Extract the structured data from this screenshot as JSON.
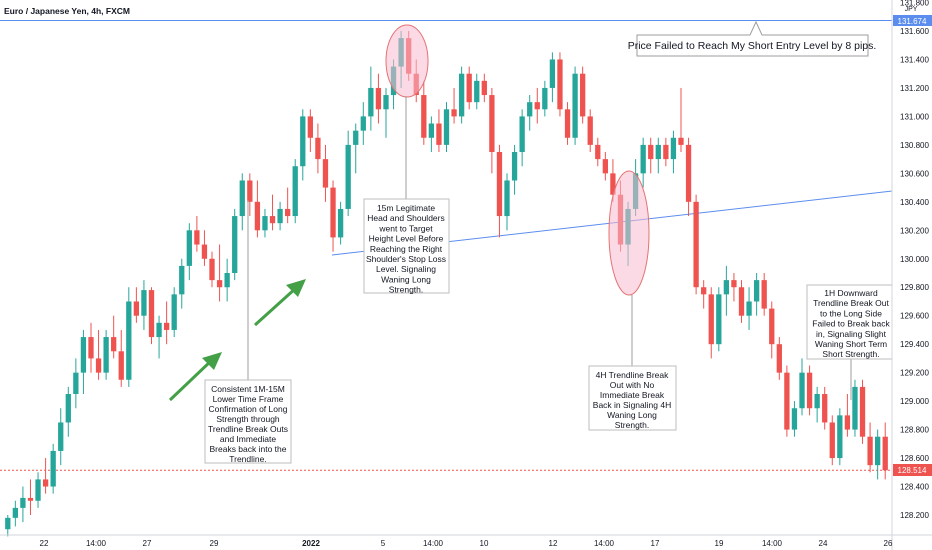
{
  "window": {
    "title": "Euro / Japanese Yen, 4h, FXCM"
  },
  "colors": {
    "up": "#26a69a",
    "down": "#ef5350",
    "hline": "#5b8def",
    "trendline": "#5b8def",
    "lastPrice": "#ef5350",
    "arrow": "#43a047",
    "ellipseFill": "#f8bbd0",
    "ellipseStroke": "#e57373"
  },
  "axis": {
    "currency": "JPY",
    "priceLabels": [
      "131.800",
      "131.600",
      "131.400",
      "131.200",
      "131.000",
      "130.800",
      "130.600",
      "130.400",
      "130.200",
      "130.000",
      "129.800",
      "129.600",
      "129.400",
      "129.200",
      "129.000",
      "128.800",
      "128.600",
      "128.400",
      "128.200"
    ],
    "dateLabels": [
      "22",
      "14:00",
      "27",
      "29",
      "2022",
      "5",
      "14:00",
      "10",
      "12",
      "14:00",
      "17",
      "19",
      "14:00",
      "24",
      "26"
    ],
    "hlinePrice": "131.674",
    "lastPrice": "128.514"
  },
  "annotations": {
    "shortEntry": "Price Failed to Reach My Short Entry Level by 8 pips.",
    "headShoulders": [
      "15m Legitimate",
      "Head and Shoulders",
      "went to Target",
      "Height Level Before",
      "Reaching the Right",
      "Shoulder's Stop Loss",
      "Level. Signaling",
      "Waning Long",
      "Strength."
    ],
    "consistent": [
      "Consistent 1M-15M",
      "Lower Time Frame",
      "Confirmation of Long",
      "Strength through",
      "Trendline Break Outs",
      "and Immediate",
      "Breaks back into the",
      "Trendline."
    ],
    "trendline4h": [
      "4H Trendline Break",
      "Out with No",
      "Immediate Break",
      "Back in Signaling 4H",
      "Waning Long",
      "Strength."
    ],
    "downward1h": [
      "1H Downward",
      "Trendline Break Out",
      "to the Long Side",
      "Failed to Break back",
      "in, Signaling Slight",
      "Waning Short Term",
      "Short Strength."
    ]
  },
  "candles": [
    [
      128.1,
      128.2,
      128.05,
      128.18
    ],
    [
      128.18,
      128.3,
      128.12,
      128.25
    ],
    [
      128.25,
      128.4,
      128.15,
      128.32
    ],
    [
      128.32,
      128.45,
      128.2,
      128.3
    ],
    [
      128.3,
      128.5,
      128.25,
      128.45
    ],
    [
      128.45,
      128.6,
      128.35,
      128.4
    ],
    [
      128.4,
      128.7,
      128.35,
      128.65
    ],
    [
      128.65,
      128.95,
      128.55,
      128.85
    ],
    [
      128.85,
      129.1,
      128.75,
      129.05
    ],
    [
      129.05,
      129.3,
      128.95,
      129.2
    ],
    [
      129.2,
      129.5,
      129.05,
      129.45
    ],
    [
      129.45,
      129.55,
      129.2,
      129.3
    ],
    [
      129.3,
      129.5,
      129.15,
      129.2
    ],
    [
      129.2,
      129.5,
      129.15,
      129.45
    ],
    [
      129.45,
      129.6,
      129.3,
      129.35
    ],
    [
      129.35,
      129.5,
      129.1,
      129.15
    ],
    [
      129.15,
      129.8,
      129.1,
      129.7
    ],
    [
      129.7,
      129.8,
      129.55,
      129.6
    ],
    [
      129.6,
      129.85,
      129.5,
      129.78
    ],
    [
      129.78,
      129.8,
      129.4,
      129.45
    ],
    [
      129.45,
      129.6,
      129.3,
      129.55
    ],
    [
      129.55,
      129.7,
      129.4,
      129.5
    ],
    [
      129.5,
      129.8,
      129.45,
      129.75
    ],
    [
      129.75,
      130.0,
      129.65,
      129.95
    ],
    [
      129.95,
      130.25,
      129.85,
      130.2
    ],
    [
      130.2,
      130.3,
      130.05,
      130.1
    ],
    [
      130.1,
      130.2,
      129.95,
      130.0
    ],
    [
      130.0,
      130.05,
      129.8,
      129.85
    ],
    [
      129.85,
      130.1,
      129.7,
      129.8
    ],
    [
      129.8,
      130.0,
      129.7,
      129.9
    ],
    [
      129.9,
      130.35,
      129.85,
      130.3
    ],
    [
      130.3,
      130.6,
      130.2,
      130.55
    ],
    [
      130.55,
      130.6,
      130.3,
      130.4
    ],
    [
      130.4,
      130.55,
      130.15,
      130.2
    ],
    [
      130.2,
      130.35,
      130.15,
      130.3
    ],
    [
      130.3,
      130.45,
      130.2,
      130.25
    ],
    [
      130.25,
      130.4,
      130.2,
      130.35
    ],
    [
      130.35,
      130.5,
      130.25,
      130.3
    ],
    [
      130.3,
      130.7,
      130.25,
      130.65
    ],
    [
      130.65,
      131.05,
      130.55,
      131.0
    ],
    [
      131.0,
      131.05,
      130.75,
      130.85
    ],
    [
      130.85,
      130.95,
      130.6,
      130.7
    ],
    [
      130.7,
      130.8,
      130.4,
      130.5
    ],
    [
      130.5,
      130.55,
      130.05,
      130.15
    ],
    [
      130.15,
      130.4,
      130.1,
      130.35
    ],
    [
      130.35,
      130.9,
      130.3,
      130.8
    ],
    [
      130.8,
      130.95,
      130.6,
      130.9
    ],
    [
      130.9,
      131.1,
      130.8,
      131.0
    ],
    [
      131.0,
      131.35,
      130.9,
      131.2
    ],
    [
      131.2,
      131.3,
      130.95,
      131.05
    ],
    [
      131.05,
      131.2,
      130.85,
      131.15
    ],
    [
      131.15,
      131.4,
      131.05,
      131.35
    ],
    [
      131.35,
      131.6,
      131.2,
      131.55
    ],
    [
      131.55,
      131.6,
      131.25,
      131.3
    ],
    [
      131.3,
      131.4,
      131.1,
      131.15
    ],
    [
      131.15,
      131.25,
      130.8,
      130.85
    ],
    [
      130.85,
      131.0,
      130.75,
      130.95
    ],
    [
      130.95,
      131.05,
      130.75,
      130.8
    ],
    [
      130.8,
      131.1,
      130.75,
      131.05
    ],
    [
      131.05,
      131.2,
      130.95,
      131.0
    ],
    [
      131.0,
      131.35,
      130.95,
      131.3
    ],
    [
      131.3,
      131.35,
      131.05,
      131.1
    ],
    [
      131.1,
      131.3,
      131.05,
      131.25
    ],
    [
      131.25,
      131.3,
      131.1,
      131.15
    ],
    [
      131.15,
      131.2,
      130.6,
      130.75
    ],
    [
      130.75,
      130.8,
      130.15,
      130.3
    ],
    [
      130.3,
      130.6,
      130.2,
      130.55
    ],
    [
      130.55,
      130.8,
      130.45,
      130.75
    ],
    [
      130.75,
      131.05,
      130.65,
      131.0
    ],
    [
      131.0,
      131.15,
      130.9,
      131.1
    ],
    [
      131.1,
      131.2,
      130.95,
      131.05
    ],
    [
      131.05,
      131.25,
      131.0,
      131.2
    ],
    [
      131.2,
      131.45,
      131.1,
      131.4
    ],
    [
      131.4,
      131.45,
      131.0,
      131.05
    ],
    [
      131.05,
      131.1,
      130.8,
      130.85
    ],
    [
      130.85,
      131.35,
      130.8,
      131.3
    ],
    [
      131.3,
      131.35,
      130.95,
      131.0
    ],
    [
      131.0,
      131.05,
      130.75,
      130.8
    ],
    [
      130.8,
      130.85,
      130.65,
      130.7
    ],
    [
      130.7,
      130.75,
      130.55,
      130.6
    ],
    [
      130.6,
      130.7,
      130.4,
      130.45
    ],
    [
      130.45,
      130.55,
      130.05,
      130.1
    ],
    [
      130.1,
      130.4,
      129.95,
      130.35
    ],
    [
      130.35,
      130.7,
      130.3,
      130.6
    ],
    [
      130.6,
      130.85,
      130.5,
      130.8
    ],
    [
      130.8,
      130.85,
      130.6,
      130.7
    ],
    [
      130.7,
      130.85,
      130.6,
      130.8
    ],
    [
      130.8,
      130.85,
      130.65,
      130.7
    ],
    [
      130.7,
      130.9,
      130.6,
      130.85
    ],
    [
      130.85,
      131.2,
      130.75,
      130.8
    ],
    [
      130.8,
      130.85,
      130.3,
      130.4
    ],
    [
      130.4,
      130.45,
      129.75,
      129.8
    ],
    [
      129.8,
      129.85,
      129.65,
      129.75
    ],
    [
      129.75,
      129.8,
      129.3,
      129.4
    ],
    [
      129.4,
      129.8,
      129.35,
      129.75
    ],
    [
      129.75,
      129.95,
      129.6,
      129.85
    ],
    [
      129.85,
      129.9,
      129.7,
      129.8
    ],
    [
      129.8,
      129.85,
      129.55,
      129.6
    ],
    [
      129.6,
      129.8,
      129.5,
      129.7
    ],
    [
      129.7,
      129.9,
      129.6,
      129.85
    ],
    [
      129.85,
      129.9,
      129.6,
      129.65
    ],
    [
      129.65,
      129.7,
      129.3,
      129.4
    ],
    [
      129.4,
      129.45,
      129.15,
      129.2
    ],
    [
      129.2,
      129.25,
      128.75,
      128.8
    ],
    [
      128.8,
      129.0,
      128.75,
      128.95
    ],
    [
      128.95,
      129.3,
      128.9,
      129.2
    ],
    [
      129.2,
      129.25,
      128.9,
      128.95
    ],
    [
      128.95,
      129.1,
      128.85,
      129.05
    ],
    [
      129.05,
      129.1,
      128.8,
      128.85
    ],
    [
      128.85,
      128.9,
      128.55,
      128.6
    ],
    [
      128.6,
      128.95,
      128.55,
      128.9
    ],
    [
      128.9,
      129.05,
      128.75,
      128.8
    ],
    [
      128.8,
      129.15,
      128.75,
      129.1
    ],
    [
      129.1,
      129.15,
      128.7,
      128.75
    ],
    [
      128.75,
      128.85,
      128.5,
      128.55
    ],
    [
      128.55,
      128.8,
      128.45,
      128.75
    ],
    [
      128.75,
      128.85,
      128.45,
      128.514
    ]
  ]
}
